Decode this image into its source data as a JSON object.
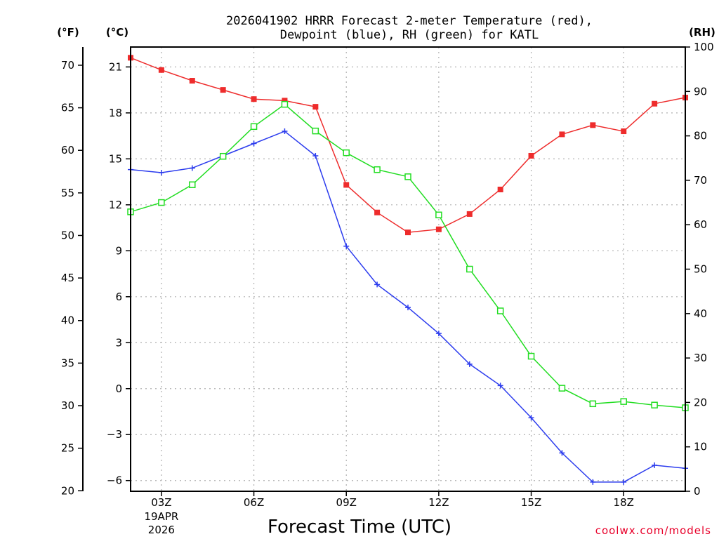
{
  "chart_data": {
    "type": "line",
    "title_line1": "2026041902 HRRR Forecast 2-meter Temperature (red),",
    "title_line2": "Dewpoint (blue), RH (green) for KATL",
    "xlabel": "Forecast Time (UTC)",
    "credit": "coolwx.com/models",
    "unit_labels": {
      "fahrenheit": "(°F)",
      "celsius": "(°C)",
      "rh": "(RH)"
    },
    "x_hours": [
      2,
      3,
      4,
      5,
      6,
      7,
      8,
      9,
      10,
      11,
      12,
      13,
      14,
      15,
      16,
      17,
      18,
      19,
      20
    ],
    "xlim": [
      2,
      20
    ],
    "x_ticks": [
      {
        "hour": 3,
        "label": "03Z",
        "date": "19APR",
        "year": "2026"
      },
      {
        "hour": 6,
        "label": "06Z"
      },
      {
        "hour": 9,
        "label": "09Z"
      },
      {
        "hour": 12,
        "label": "12Z"
      },
      {
        "hour": 15,
        "label": "15Z"
      },
      {
        "hour": 18,
        "label": "18Z"
      }
    ],
    "celsius_ylim": [
      -6.7,
      22.3
    ],
    "celsius_ticks": [
      "21",
      "18",
      "15",
      "12",
      "9",
      "6",
      "3",
      "0",
      "−3",
      "−6"
    ],
    "fahrenheit_ticks": [
      "70",
      "65",
      "60",
      "55",
      "50",
      "45",
      "40",
      "35",
      "30",
      "25",
      "20"
    ],
    "rh_ylim": [
      0,
      100
    ],
    "rh_ticks": [
      "100",
      "90",
      "80",
      "70",
      "60",
      "50",
      "40",
      "30",
      "20",
      "10",
      "0"
    ],
    "series": [
      {
        "name": "Temperature",
        "axis": "celsius",
        "color": "#ee2c2c",
        "marker": "filled-square",
        "values": [
          21.6,
          20.8,
          20.1,
          19.5,
          18.9,
          18.8,
          18.4,
          13.3,
          11.5,
          10.2,
          10.4,
          11.4,
          13.0,
          15.2,
          16.6,
          17.2,
          16.8,
          18.6,
          19.0
        ]
      },
      {
        "name": "Dewpoint",
        "axis": "celsius",
        "color": "#2c3cee",
        "marker": "plus",
        "values": [
          14.3,
          14.1,
          14.4,
          15.2,
          16.0,
          16.8,
          15.2,
          9.3,
          6.8,
          5.3,
          3.6,
          1.6,
          0.2,
          -1.9,
          -4.2,
          -6.1,
          -6.1,
          -5.0,
          -5.2
        ]
      },
      {
        "name": "RH",
        "axis": "rh",
        "color": "#22dd22",
        "marker": "open-square",
        "values": [
          62.9,
          65.0,
          69.0,
          75.4,
          82.1,
          87.1,
          81.1,
          76.2,
          72.4,
          70.8,
          62.2,
          50.0,
          40.6,
          30.4,
          23.2,
          19.7,
          20.2,
          19.4,
          18.8
        ]
      }
    ]
  }
}
